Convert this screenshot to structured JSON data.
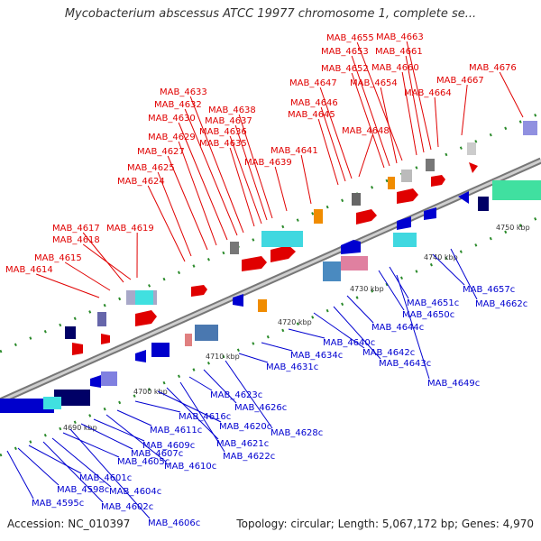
{
  "title": "Mycobacterium abscessus ATCC 19977 chromosome 1, complete se...",
  "accession": "Accession: NC_010397",
  "topology": "Topology: circular; Length: 5,067,172 bp; Genes: 4,970",
  "colors": {
    "forward": "#e00000",
    "reverse": "#0000d0",
    "backbone": "#888888",
    "dot": "#2a8a2a"
  },
  "ticks": [
    "4690 kbp",
    "4700 kbp",
    "4710 kbp",
    "4720 kbp",
    "4730 kbp",
    "4740 kbp",
    "4750 kbp"
  ],
  "forward_genes": [
    "MAB_4614",
    "MAB_4615",
    "MAB_4617",
    "MAB_4618",
    "MAB_4619",
    "MAB_4624",
    "MAB_4625",
    "MAB_4627",
    "MAB_4629",
    "MAB_4630",
    "MAB_4632",
    "MAB_4633",
    "MAB_4635",
    "MAB_4636",
    "MAB_4637",
    "MAB_4638",
    "MAB_4639",
    "MAB_4641",
    "MAB_4645",
    "MAB_4646",
    "MAB_4647",
    "MAB_4648",
    "MAB_4652",
    "MAB_4653",
    "MAB_4654",
    "MAB_4655",
    "MAB_4660",
    "MAB_4661",
    "MAB_4663",
    "MAB_4664",
    "MAB_4667",
    "MAB_4676"
  ],
  "reverse_genes": [
    "MAB_4595c",
    "MAB_4598c",
    "MAB_4601c",
    "MAB_4602c",
    "MAB_4604c",
    "MAB_4605c",
    "MAB_4606c",
    "MAB_4607c",
    "MAB_4609c",
    "MAB_4610c",
    "MAB_4611c",
    "MAB_4616c",
    "MAB_4620c",
    "MAB_4621c",
    "MAB_4622c",
    "MAB_4623c",
    "MAB_4626c",
    "MAB_4628c",
    "MAB_4631c",
    "MAB_4634c",
    "MAB_4640c",
    "MAB_4642c",
    "MAB_4643c",
    "MAB_4644c",
    "MAB_4649c",
    "MAB_4650c",
    "MAB_4651c",
    "MAB_4657c",
    "MAB_4662c"
  ]
}
